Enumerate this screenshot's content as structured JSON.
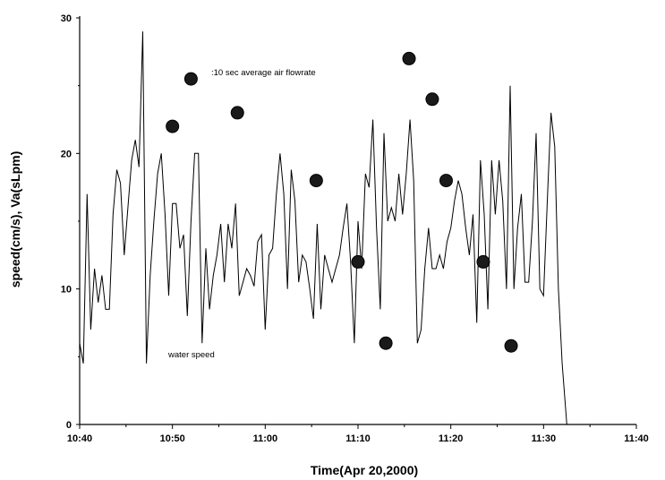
{
  "chart_data": {
    "type": "scatter",
    "title": "",
    "xlabel": "Time(Apr 20,2000)",
    "ylabel": "speed(cm/s), Va(sLpm)",
    "x_ticks": [
      "10:40",
      "10:50",
      "11:00",
      "11:10",
      "11:20",
      "11:30",
      "11:40"
    ],
    "y_ticks": [
      "0",
      "10",
      "20",
      "30"
    ],
    "xlim_minutes": [
      0,
      60
    ],
    "ylim": [
      0,
      30
    ],
    "grid": false,
    "legend": "none",
    "annotations": [
      {
        "text": ":10 sec average air flowrate",
        "series": "air"
      },
      {
        "text": "water speed",
        "series": "water"
      }
    ],
    "series": [
      {
        "name": "water speed",
        "type": "line",
        "color": "#000000",
        "points": [
          [
            0.0,
            6.0
          ],
          [
            0.4,
            4.5
          ],
          [
            0.8,
            17.0
          ],
          [
            1.2,
            7.0
          ],
          [
            1.6,
            11.5
          ],
          [
            2.0,
            9.0
          ],
          [
            2.4,
            11.0
          ],
          [
            2.8,
            8.5
          ],
          [
            3.2,
            8.5
          ],
          [
            3.6,
            15.5
          ],
          [
            4.0,
            18.8
          ],
          [
            4.4,
            17.8
          ],
          [
            4.8,
            12.5
          ],
          [
            5.2,
            16.0
          ],
          [
            5.6,
            19.5
          ],
          [
            6.0,
            21.0
          ],
          [
            6.4,
            19.0
          ],
          [
            6.8,
            29.0
          ],
          [
            7.2,
            4.5
          ],
          [
            7.6,
            11.0
          ],
          [
            8.0,
            15.0
          ],
          [
            8.4,
            18.5
          ],
          [
            8.8,
            20.0
          ],
          [
            9.2,
            15.5
          ],
          [
            9.6,
            9.5
          ],
          [
            10.0,
            16.3
          ],
          [
            10.4,
            16.3
          ],
          [
            10.8,
            13.0
          ],
          [
            11.2,
            14.0
          ],
          [
            11.6,
            8.0
          ],
          [
            12.0,
            15.0
          ],
          [
            12.4,
            20.0
          ],
          [
            12.8,
            20.0
          ],
          [
            13.2,
            6.0
          ],
          [
            13.6,
            13.0
          ],
          [
            14.0,
            8.5
          ],
          [
            14.4,
            11.0
          ],
          [
            14.8,
            12.5
          ],
          [
            15.2,
            14.8
          ],
          [
            15.6,
            10.5
          ],
          [
            16.0,
            14.8
          ],
          [
            16.4,
            13.0
          ],
          [
            16.8,
            16.3
          ],
          [
            17.2,
            9.5
          ],
          [
            17.6,
            10.5
          ],
          [
            18.0,
            11.5
          ],
          [
            18.4,
            11.0
          ],
          [
            18.8,
            10.2
          ],
          [
            19.2,
            13.5
          ],
          [
            19.6,
            14.0
          ],
          [
            20.0,
            7.0
          ],
          [
            20.4,
            12.5
          ],
          [
            20.8,
            13.0
          ],
          [
            21.2,
            17.0
          ],
          [
            21.6,
            20.0
          ],
          [
            22.0,
            17.0
          ],
          [
            22.4,
            10.0
          ],
          [
            22.8,
            18.8
          ],
          [
            23.2,
            16.5
          ],
          [
            23.6,
            10.5
          ],
          [
            24.0,
            12.5
          ],
          [
            24.4,
            12.0
          ],
          [
            24.8,
            10.0
          ],
          [
            25.2,
            7.8
          ],
          [
            25.6,
            14.8
          ],
          [
            26.0,
            8.5
          ],
          [
            26.4,
            12.5
          ],
          [
            26.8,
            11.5
          ],
          [
            27.2,
            10.5
          ],
          [
            27.6,
            11.5
          ],
          [
            28.0,
            12.5
          ],
          [
            28.4,
            14.5
          ],
          [
            28.8,
            16.3
          ],
          [
            29.2,
            12.0
          ],
          [
            29.6,
            6.0
          ],
          [
            30.0,
            15.0
          ],
          [
            30.4,
            11.5
          ],
          [
            30.8,
            18.5
          ],
          [
            31.2,
            17.5
          ],
          [
            31.6,
            22.5
          ],
          [
            32.0,
            14.5
          ],
          [
            32.4,
            8.5
          ],
          [
            32.8,
            21.5
          ],
          [
            33.2,
            15.0
          ],
          [
            33.6,
            16.0
          ],
          [
            34.0,
            15.0
          ],
          [
            34.4,
            18.5
          ],
          [
            34.8,
            15.5
          ],
          [
            35.2,
            18.5
          ],
          [
            35.6,
            22.5
          ],
          [
            36.0,
            18.0
          ],
          [
            36.4,
            6.0
          ],
          [
            36.8,
            7.0
          ],
          [
            37.2,
            11.5
          ],
          [
            37.6,
            14.5
          ],
          [
            38.0,
            11.5
          ],
          [
            38.4,
            11.5
          ],
          [
            38.8,
            12.5
          ],
          [
            39.2,
            11.5
          ],
          [
            39.6,
            13.5
          ],
          [
            40.0,
            14.5
          ],
          [
            40.4,
            16.5
          ],
          [
            40.8,
            18.0
          ],
          [
            41.2,
            17.0
          ],
          [
            41.6,
            14.5
          ],
          [
            42.0,
            12.5
          ],
          [
            42.4,
            15.5
          ],
          [
            42.8,
            7.5
          ],
          [
            43.2,
            19.5
          ],
          [
            43.6,
            15.5
          ],
          [
            44.0,
            8.5
          ],
          [
            44.4,
            19.5
          ],
          [
            44.8,
            15.5
          ],
          [
            45.2,
            19.5
          ],
          [
            45.6,
            16.5
          ],
          [
            46.0,
            10.0
          ],
          [
            46.4,
            25.0
          ],
          [
            46.8,
            10.0
          ],
          [
            47.2,
            14.5
          ],
          [
            47.6,
            17.0
          ],
          [
            48.0,
            10.5
          ],
          [
            48.4,
            10.5
          ],
          [
            48.8,
            15.0
          ],
          [
            49.2,
            21.5
          ],
          [
            49.6,
            10.0
          ],
          [
            50.0,
            9.5
          ],
          [
            50.4,
            16.5
          ],
          [
            50.8,
            23.0
          ],
          [
            51.2,
            20.5
          ],
          [
            51.6,
            10.0
          ],
          [
            52.0,
            4.5
          ],
          [
            52.5,
            0.0
          ]
        ]
      },
      {
        "name": ":10 sec average air flowrate",
        "type": "scatter",
        "color": "#1a1a1a",
        "points": [
          [
            10.0,
            22.0
          ],
          [
            12.0,
            25.5
          ],
          [
            17.0,
            23.0
          ],
          [
            25.5,
            18.0
          ],
          [
            30.0,
            12.0
          ],
          [
            33.0,
            6.0
          ],
          [
            35.5,
            27.0
          ],
          [
            38.0,
            24.0
          ],
          [
            39.5,
            18.0
          ],
          [
            43.5,
            12.0
          ],
          [
            46.5,
            5.8
          ]
        ]
      }
    ]
  }
}
